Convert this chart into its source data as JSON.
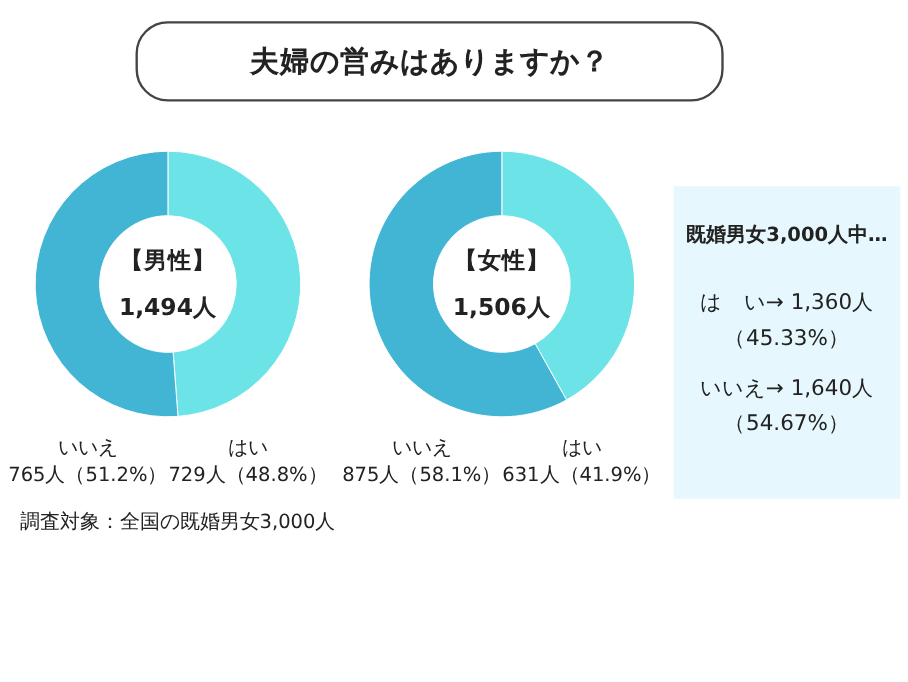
{
  "chart_data": [
    {
      "type": "other",
      "title": "夫婦の営みはありますか？"
    },
    {
      "type": "donut",
      "categories": [
        "はい",
        "いいえ"
      ],
      "values": [
        729,
        765
      ],
      "colors": [
        "#6ce3e6",
        "#42b4d4"
      ],
      "value_labels": [
        "729人（48.8%）",
        "765人（51.2%）"
      ],
      "annotations": [
        "【男性】",
        "1,494人",
        "調査対象：全国の既婚男女3,000人"
      ]
    },
    {
      "type": "donut",
      "categories": [
        "はい",
        "いいえ"
      ],
      "values": [
        631,
        875
      ],
      "colors": [
        "#6ce3e6",
        "#42b4d4"
      ],
      "value_labels": [
        "631人（41.9%）",
        "875人（58.1%）"
      ],
      "annotations": [
        "【女性】",
        "1,506人"
      ]
    },
    {
      "type": "other",
      "title": "既婚男女3,000人中…",
      "color": "#e6f7fd",
      "annotations": [
        "は　い→ 1,360人",
        "（45.33%）",
        "いいえ→ 1,640人",
        "（54.67%）"
      ]
    }
  ]
}
